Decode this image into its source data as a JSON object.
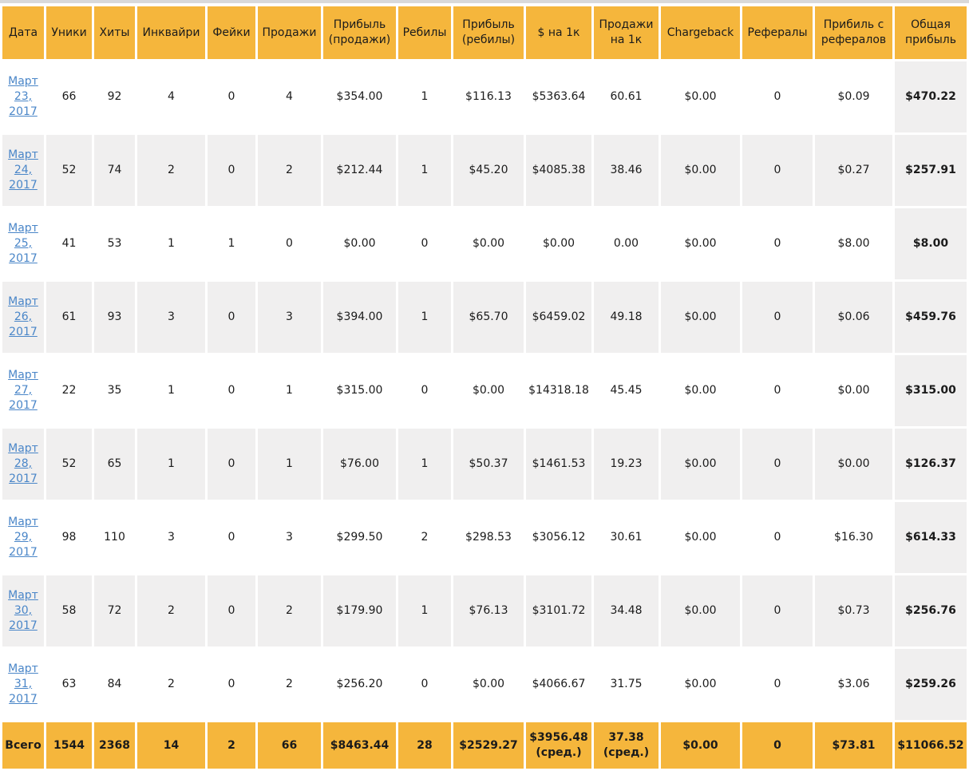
{
  "colors": {
    "accent_orange": "#F5B63C",
    "alt_row_gray": "#F0EFEF",
    "link_blue": "#4A86C8",
    "top_strip_gray": "#D9D9D9",
    "text_dark": "#1B1B1B"
  },
  "table": {
    "columns": [
      "Дата",
      "Уники",
      "Хиты",
      "Инквайри",
      "Фейки",
      "Продажи",
      "Прибыль (продажи)",
      "Ребилы",
      "Прибыль (ребилы)",
      "$ на 1к",
      "Продажи на 1к",
      "Chargeback",
      "Рефералы",
      "Прибиль с рефералов",
      "Общая прибыль"
    ],
    "rows": [
      {
        "date": "Март 23, 2017",
        "cells": [
          "66",
          "92",
          "4",
          "0",
          "4",
          "$354.00",
          "1",
          "$116.13",
          "$5363.64",
          "60.61",
          "$0.00",
          "0",
          "$0.09",
          "$470.22"
        ]
      },
      {
        "date": "Март 24, 2017",
        "cells": [
          "52",
          "74",
          "2",
          "0",
          "2",
          "$212.44",
          "1",
          "$45.20",
          "$4085.38",
          "38.46",
          "$0.00",
          "0",
          "$0.27",
          "$257.91"
        ]
      },
      {
        "date": "Март 25, 2017",
        "cells": [
          "41",
          "53",
          "1",
          "1",
          "0",
          "$0.00",
          "0",
          "$0.00",
          "$0.00",
          "0.00",
          "$0.00",
          "0",
          "$8.00",
          "$8.00"
        ]
      },
      {
        "date": "Март 26, 2017",
        "cells": [
          "61",
          "93",
          "3",
          "0",
          "3",
          "$394.00",
          "1",
          "$65.70",
          "$6459.02",
          "49.18",
          "$0.00",
          "0",
          "$0.06",
          "$459.76"
        ]
      },
      {
        "date": "Март 27, 2017",
        "cells": [
          "22",
          "35",
          "1",
          "0",
          "1",
          "$315.00",
          "0",
          "$0.00",
          "$14318.18",
          "45.45",
          "$0.00",
          "0",
          "$0.00",
          "$315.00"
        ]
      },
      {
        "date": "Март 28, 2017",
        "cells": [
          "52",
          "65",
          "1",
          "0",
          "1",
          "$76.00",
          "1",
          "$50.37",
          "$1461.53",
          "19.23",
          "$0.00",
          "0",
          "$0.00",
          "$126.37"
        ]
      },
      {
        "date": "Март 29, 2017",
        "cells": [
          "98",
          "110",
          "3",
          "0",
          "3",
          "$299.50",
          "2",
          "$298.53",
          "$3056.12",
          "30.61",
          "$0.00",
          "0",
          "$16.30",
          "$614.33"
        ]
      },
      {
        "date": "Март 30, 2017",
        "cells": [
          "58",
          "72",
          "2",
          "0",
          "2",
          "$179.90",
          "1",
          "$76.13",
          "$3101.72",
          "34.48",
          "$0.00",
          "0",
          "$0.73",
          "$256.76"
        ]
      },
      {
        "date": "Март 31, 2017",
        "cells": [
          "63",
          "84",
          "2",
          "0",
          "2",
          "$256.20",
          "0",
          "$0.00",
          "$4066.67",
          "31.75",
          "$0.00",
          "0",
          "$3.06",
          "$259.26"
        ]
      }
    ],
    "total": {
      "label": "Всего",
      "cells": [
        "1544",
        "2368",
        "14",
        "2",
        "66",
        "$8463.44",
        "28",
        "$2529.27",
        "$3956.48 (сред.)",
        "37.38 (сред.)",
        "$0.00",
        "0",
        "$73.81",
        "$11066.52"
      ]
    }
  }
}
